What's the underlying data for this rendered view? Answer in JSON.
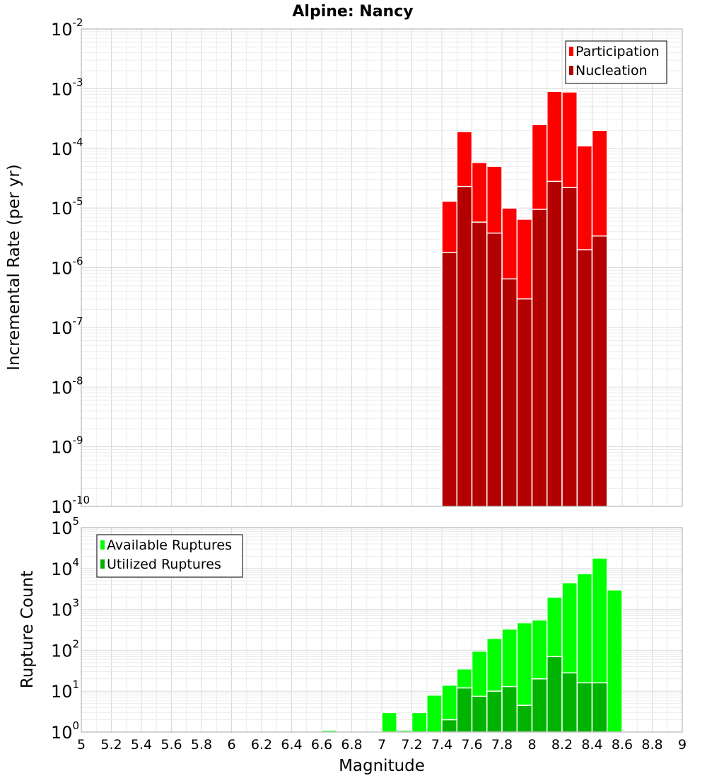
{
  "title": "Alpine: Nancy",
  "chart_data": [
    {
      "type": "bar",
      "title": "Alpine: Nancy",
      "ylabel": "Incremental Rate (per yr)",
      "xlabel": "",
      "y_scale": "log",
      "ylim": [
        1e-10,
        0.01
      ],
      "xlim": [
        5,
        9
      ],
      "y_ticks": [
        {
          "base": "10",
          "exp": "-10",
          "value": 1e-10
        },
        {
          "base": "10",
          "exp": "-9",
          "value": 1e-09
        },
        {
          "base": "10",
          "exp": "-8",
          "value": 1e-08
        },
        {
          "base": "10",
          "exp": "-7",
          "value": 1e-07
        },
        {
          "base": "10",
          "exp": "-6",
          "value": 1e-06
        },
        {
          "base": "10",
          "exp": "-5",
          "value": 1e-05
        },
        {
          "base": "10",
          "exp": "-4",
          "value": 0.0001
        },
        {
          "base": "10",
          "exp": "-3",
          "value": 0.001
        },
        {
          "base": "10",
          "exp": "-2",
          "value": 0.01
        }
      ],
      "x": [
        7.45,
        7.55,
        7.65,
        7.75,
        7.85,
        7.95,
        8.05,
        8.15,
        8.25,
        8.35,
        8.45
      ],
      "series": [
        {
          "name": "Participation",
          "color": "#ff0000",
          "values": [
            1.3e-05,
            0.00019,
            5.8e-05,
            5e-05,
            1e-05,
            6.5e-06,
            0.00025,
            0.0009,
            0.00088,
            0.00011,
            0.0002
          ]
        },
        {
          "name": "Nucleation",
          "color": "#b30000",
          "values": [
            1.8e-06,
            2.3e-05,
            5.8e-06,
            3.8e-06,
            6.5e-07,
            3e-07,
            9.5e-06,
            2.8e-05,
            2.2e-05,
            2e-06,
            3.4e-06
          ]
        }
      ],
      "legend": {
        "placement": "top-right"
      },
      "grid": true
    },
    {
      "type": "bar",
      "title": "",
      "ylabel": "Rupture Count",
      "xlabel": "Magnitude",
      "y_scale": "log",
      "ylim": [
        1,
        100000
      ],
      "xlim": [
        5,
        9
      ],
      "y_ticks": [
        {
          "base": "10",
          "exp": "0",
          "value": 1
        },
        {
          "base": "10",
          "exp": "1",
          "value": 10
        },
        {
          "base": "10",
          "exp": "2",
          "value": 100
        },
        {
          "base": "10",
          "exp": "3",
          "value": 1000
        },
        {
          "base": "10",
          "exp": "4",
          "value": 10000
        },
        {
          "base": "10",
          "exp": "5",
          "value": 100000
        }
      ],
      "x_ticks": [
        "5",
        "5.2",
        "5.4",
        "5.6",
        "5.8",
        "6",
        "6.2",
        "6.4",
        "6.6",
        "6.8",
        "7",
        "7.2",
        "7.4",
        "7.6",
        "7.8",
        "8",
        "8.2",
        "8.4",
        "8.6",
        "8.8",
        "9"
      ],
      "x": [
        6.65,
        7.05,
        7.15,
        7.25,
        7.35,
        7.45,
        7.55,
        7.65,
        7.75,
        7.85,
        7.95,
        8.05,
        8.15,
        8.25,
        8.35,
        8.45,
        8.55
      ],
      "series": [
        {
          "name": "Available Ruptures",
          "color": "#00ff00",
          "values": [
            1.1,
            3,
            1.1,
            3,
            8,
            14,
            35,
            95,
            195,
            330,
            470,
            550,
            2000,
            4500,
            7500,
            18000,
            3000
          ]
        },
        {
          "name": "Utilized Ruptures",
          "color": "#00b300",
          "values": [
            null,
            null,
            null,
            null,
            null,
            2,
            12,
            7.5,
            10,
            13,
            4.5,
            20,
            70,
            28,
            16,
            16,
            null
          ]
        }
      ],
      "legend": {
        "placement": "top-left"
      },
      "grid": true
    }
  ]
}
